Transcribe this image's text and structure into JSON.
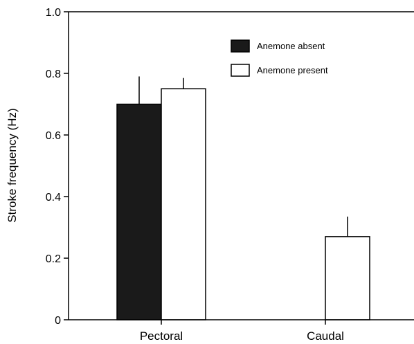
{
  "chart_data": {
    "type": "bar",
    "title": "",
    "xlabel": "",
    "ylabel": "Stroke frequency (Hz)",
    "ylim": [
      0,
      1.0
    ],
    "yticks": [
      "0",
      "0.2",
      "0.4",
      "0.6",
      "0.8",
      "1.0"
    ],
    "categories": [
      "Pectoral",
      "Caudal"
    ],
    "grid": false,
    "legend_position": "top-right",
    "series": [
      {
        "name": "Anemone absent",
        "color": "#1a1a1a",
        "values": [
          0.7,
          null
        ],
        "error": [
          0.09,
          null
        ]
      },
      {
        "name": "Anemone present",
        "color": "#ffffff",
        "values": [
          0.75,
          0.27
        ],
        "error": [
          0.035,
          0.065
        ]
      }
    ]
  }
}
